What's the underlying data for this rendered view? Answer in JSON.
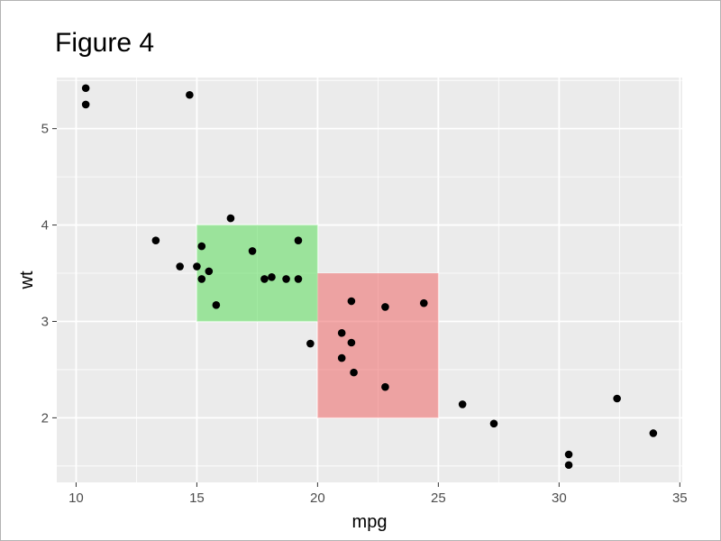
{
  "chart_data": {
    "type": "scatter",
    "title": "Figure 4",
    "xlabel": "mpg",
    "ylabel": "wt",
    "xlim": [
      9.2,
      35.1
    ],
    "ylim": [
      1.33,
      5.53
    ],
    "x_ticks": [
      10,
      15,
      20,
      25,
      30,
      35
    ],
    "y_ticks": [
      2,
      3,
      4,
      5
    ],
    "grid": true,
    "legend": "none",
    "colors": {
      "panel_background": "#EBEBEB",
      "grid": "#FFFFFF",
      "points": "#000000",
      "green_rect": "#7FE57F",
      "red_rect": "#F08A8A",
      "tick_label": "#4D4D4D"
    },
    "rectangles": [
      {
        "name": "green-rect",
        "xmin": 15,
        "xmax": 20,
        "ymin": 3,
        "ymax": 4,
        "color": "#66DD66",
        "opacity": 0.6
      },
      {
        "name": "red-rect",
        "xmin": 20,
        "xmax": 25,
        "ymin": 2,
        "ymax": 3.5,
        "color": "#EE6666",
        "opacity": 0.55
      }
    ],
    "points": [
      {
        "x": 10.4,
        "y": 5.42
      },
      {
        "x": 10.4,
        "y": 5.25
      },
      {
        "x": 14.7,
        "y": 5.35
      },
      {
        "x": 13.3,
        "y": 3.84
      },
      {
        "x": 14.3,
        "y": 3.57
      },
      {
        "x": 15.0,
        "y": 3.57
      },
      {
        "x": 15.2,
        "y": 3.78
      },
      {
        "x": 15.2,
        "y": 3.44
      },
      {
        "x": 15.5,
        "y": 3.52
      },
      {
        "x": 15.8,
        "y": 3.17
      },
      {
        "x": 16.4,
        "y": 4.07
      },
      {
        "x": 17.3,
        "y": 3.73
      },
      {
        "x": 17.8,
        "y": 3.44
      },
      {
        "x": 18.1,
        "y": 3.46
      },
      {
        "x": 18.7,
        "y": 3.44
      },
      {
        "x": 19.2,
        "y": 3.84
      },
      {
        "x": 19.2,
        "y": 3.44
      },
      {
        "x": 19.7,
        "y": 2.77
      },
      {
        "x": 21.0,
        "y": 2.88
      },
      {
        "x": 21.0,
        "y": 2.62
      },
      {
        "x": 21.4,
        "y": 3.21
      },
      {
        "x": 21.4,
        "y": 2.78
      },
      {
        "x": 21.5,
        "y": 2.47
      },
      {
        "x": 22.8,
        "y": 3.15
      },
      {
        "x": 22.8,
        "y": 2.32
      },
      {
        "x": 24.4,
        "y": 3.19
      },
      {
        "x": 26.0,
        "y": 2.14
      },
      {
        "x": 27.3,
        "y": 1.94
      },
      {
        "x": 30.4,
        "y": 1.62
      },
      {
        "x": 30.4,
        "y": 1.51
      },
      {
        "x": 32.4,
        "y": 2.2
      },
      {
        "x": 33.9,
        "y": 1.84
      }
    ]
  }
}
